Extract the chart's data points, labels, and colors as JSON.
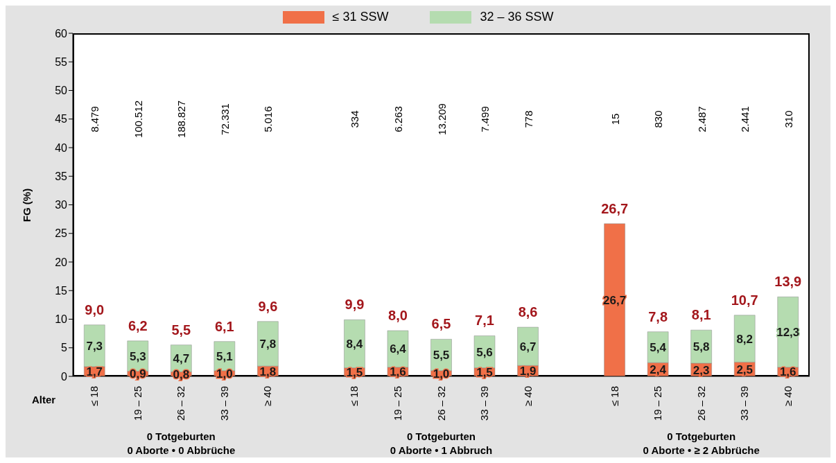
{
  "chart_data": {
    "type": "bar",
    "stacked": true,
    "ylabel": "FG (%)",
    "xlabel": "Alter",
    "categories": [
      "≤ 18",
      "19 – 25",
      "26 – 32",
      "33 – 39",
      "≥ 40",
      null,
      "≤ 18",
      "19 – 25",
      "26 – 32",
      "33 – 39",
      "≥ 40",
      null,
      "≤ 18",
      "19 – 25",
      "26 – 32",
      "33 – 39",
      "≥ 40"
    ],
    "series": [
      {
        "name": "≤ 31 SSW",
        "color": "#f07048",
        "values": [
          1.7,
          0.9,
          0.8,
          1.0,
          1.8,
          null,
          1.5,
          1.6,
          1.0,
          1.5,
          1.9,
          null,
          26.7,
          2.4,
          2.3,
          2.5,
          1.6
        ],
        "value_labels": [
          "1,7",
          "0,9",
          "0,8",
          "1,0",
          "1,8",
          null,
          "1,5",
          "1,6",
          "1,0",
          "1,5",
          "1,9",
          null,
          "26,7",
          "2,4",
          "2,3",
          "2,5",
          "1,6"
        ]
      },
      {
        "name": "32 – 36 SSW",
        "color": "#b5dcb0",
        "values": [
          7.3,
          5.3,
          4.7,
          5.1,
          7.8,
          null,
          8.4,
          6.4,
          5.5,
          5.6,
          6.7,
          null,
          null,
          5.4,
          5.8,
          8.2,
          12.3
        ],
        "value_labels": [
          "7,3",
          "5,3",
          "4,7",
          "5,1",
          "7,8",
          null,
          "8,4",
          "6,4",
          "5,5",
          "5,6",
          "6,7",
          null,
          null,
          "5,4",
          "5,8",
          "8,2",
          "12,3"
        ]
      }
    ],
    "totals": [
      "9,0",
      "6,2",
      "5,5",
      "6,1",
      "9,6",
      null,
      "9,9",
      "8,0",
      "6,5",
      "7,1",
      "8,6",
      null,
      "26,7",
      "7,8",
      "8,1",
      "10,7",
      "13,9"
    ],
    "ylim": [
      0,
      60
    ],
    "yticks": [
      0,
      5,
      10,
      15,
      20,
      25,
      30,
      35,
      40,
      45,
      50,
      55,
      60
    ],
    "legend": "top",
    "annotations": [
      "8.479",
      "100.512",
      "188.827",
      "72.331",
      "5.016",
      "334",
      "6.263",
      "13.209",
      "7.499",
      "778",
      "15",
      "830",
      "2.487",
      "2.441",
      "310",
      "0 Totgeburten\n0 Aborte • 0 Abbrüche",
      "0 Totgeburten\n0 Aborte • 1 Abbruch",
      "0 Totgeburten\n0 Aborte • ≥ 2 Abbrüche"
    ]
  }
}
